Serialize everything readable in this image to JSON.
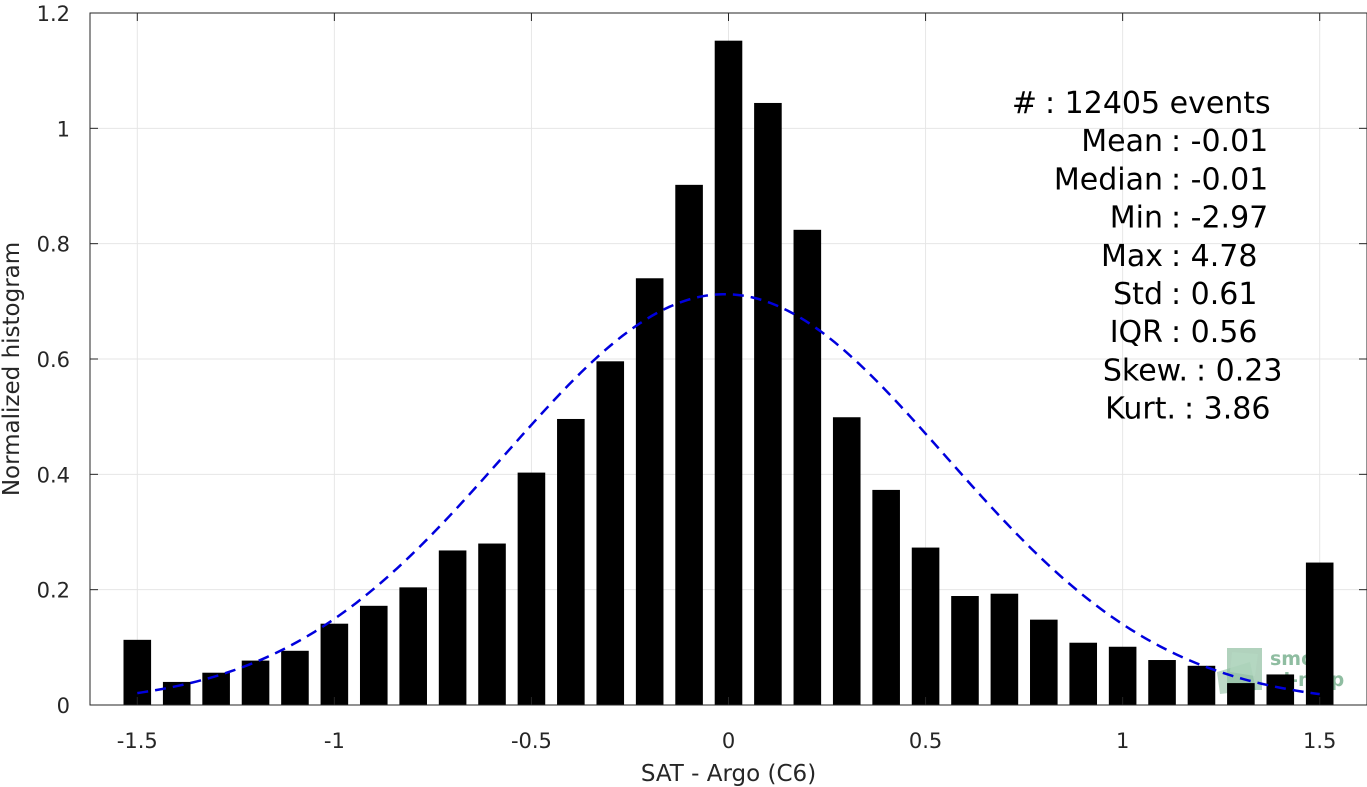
{
  "chart_data": {
    "type": "bar",
    "title": "",
    "xlabel": "SAT - Argo (C6)",
    "ylabel": "Normalized histogram",
    "xlim": [
      -1.62,
      1.62
    ],
    "ylim": [
      0,
      1.2
    ],
    "xticks": [
      -1.5,
      -1,
      -0.5,
      0,
      0.5,
      1,
      1.5
    ],
    "xtick_labels": [
      "-1.5",
      "-1",
      "-0.5",
      "0",
      "0.5",
      "1",
      "1.5"
    ],
    "yticks": [
      0,
      0.2,
      0.4,
      0.6,
      0.8,
      1,
      1.2
    ],
    "ytick_labels": [
      "0",
      "0.2",
      "0.4",
      "0.6",
      "0.8",
      "1",
      "1.2"
    ],
    "grid": true,
    "bar_color": "#000000",
    "x": [
      -1.5,
      -1.4,
      -1.3,
      -1.2,
      -1.1,
      -1.0,
      -0.9,
      -0.8,
      -0.7,
      -0.6,
      -0.5,
      -0.4,
      -0.3,
      -0.2,
      -0.1,
      0.0,
      0.1,
      0.2,
      0.3,
      0.4,
      0.5,
      0.6,
      0.7,
      0.8,
      0.9,
      1.0,
      1.1,
      1.2,
      1.3,
      1.4,
      1.5
    ],
    "values": [
      0.113,
      0.04,
      0.056,
      0.077,
      0.094,
      0.141,
      0.172,
      0.204,
      0.268,
      0.28,
      0.403,
      0.496,
      0.596,
      0.74,
      0.902,
      1.152,
      1.044,
      0.824,
      0.499,
      0.373,
      0.273,
      0.189,
      0.193,
      0.148,
      0.108,
      0.101,
      0.078,
      0.068,
      0.038,
      0.053,
      0.247
    ],
    "fit": {
      "type": "normal",
      "mean": -0.01,
      "std": 0.56,
      "x_range": [
        -1.5,
        1.5
      ],
      "color": "#0000dd",
      "line_style": "dashed"
    },
    "annotations": [
      {
        "label": "#  ",
        "value": ": 12405 events"
      },
      {
        "label": "Mean",
        "value": ": -0.01"
      },
      {
        "label": "Median",
        "value": ": -0.01"
      },
      {
        "label": "Min",
        "value": ": -2.97"
      },
      {
        "label": "Max",
        "value": ": 4.78"
      },
      {
        "label": "Std",
        "value": ": 0.61"
      },
      {
        "label": "IQR",
        "value": ": 0.56"
      },
      {
        "label": "Skew.",
        "value": ": 0.23"
      },
      {
        "label": "Kurt.",
        "value": ": 3.86"
      }
    ],
    "watermark": {
      "line1": "smos",
      "line2": "pi-mep",
      "color": "#6aa882"
    }
  }
}
